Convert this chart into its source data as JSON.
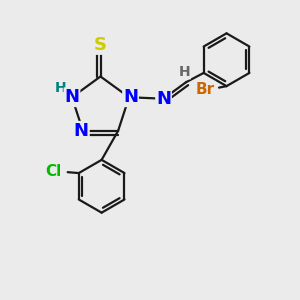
{
  "background_color": "#ebebeb",
  "bond_color": "#1a1a1a",
  "bond_width": 1.6,
  "atom_colors": {
    "N": "#0000ff",
    "S": "#cccc00",
    "Cl": "#00bb00",
    "Br": "#cc6600",
    "H_teal": "#008080",
    "H_gray": "#666666",
    "C": "#1a1a1a"
  }
}
